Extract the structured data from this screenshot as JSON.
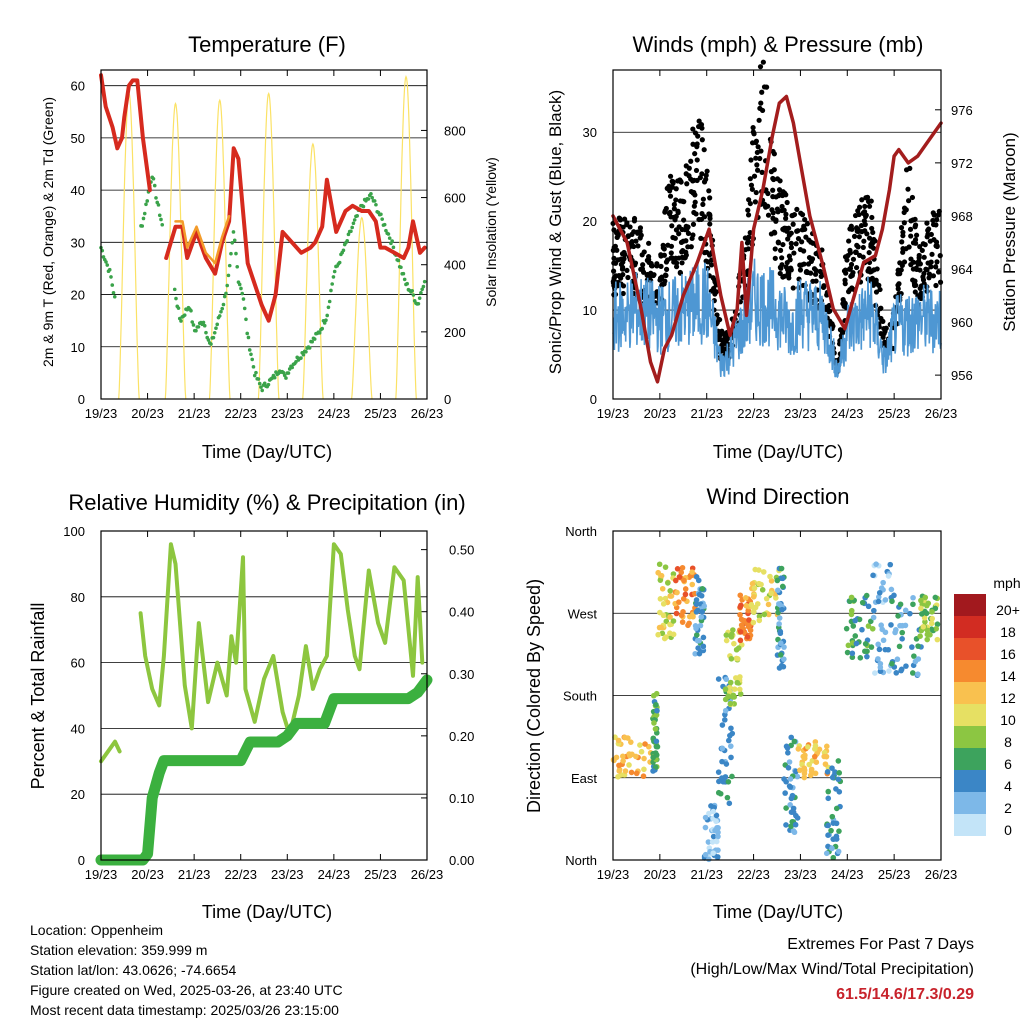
{
  "chart_data": [
    {
      "type": "line",
      "title": "Temperature (F)",
      "xlabel": "Time (Day/UTC)",
      "ylabel": "2m & 9m T (Red, Orange) & 2m Td (Green)",
      "y2label": "Solar Insolation (Yellow)",
      "x_ticks": [
        "19/23",
        "20/23",
        "21/23",
        "22/23",
        "23/23",
        "24/23",
        "25/23",
        "26/23"
      ],
      "ylim": [
        0,
        63
      ],
      "y_ticks": [
        0,
        10,
        20,
        30,
        40,
        50,
        60
      ],
      "y2lim": [
        0,
        980
      ],
      "y2_ticks": [
        0,
        200,
        400,
        600,
        800
      ],
      "series": [
        {
          "name": "2m T",
          "color": "#d62a1e",
          "x": [
            0,
            0.1,
            0.25,
            0.35,
            0.45,
            0.5,
            0.6,
            0.68,
            0.78,
            0.9,
            1.05,
            1.4,
            1.6,
            1.75,
            1.85,
            2.05,
            2.25,
            2.45,
            2.6,
            2.75,
            2.85,
            2.95,
            3.05,
            3.15,
            3.3,
            3.45,
            3.6,
            3.75,
            3.9,
            4.1,
            4.3,
            4.5,
            4.6,
            4.75,
            4.85,
            5.05,
            5.25,
            5.4,
            5.6,
            5.75,
            5.9,
            6.0,
            6.1,
            6.3,
            6.5,
            6.6,
            6.7,
            6.85,
            6.95
          ],
          "y": [
            62,
            56,
            52,
            48,
            50,
            54,
            60,
            61,
            61,
            50,
            40,
            27,
            33,
            33,
            27,
            32,
            27,
            24,
            30,
            34,
            48,
            46,
            36,
            26,
            22,
            18,
            15,
            20,
            32,
            30,
            28,
            29,
            30,
            33,
            42,
            32,
            36,
            37,
            36,
            36,
            34,
            29,
            29,
            28,
            27,
            29,
            34,
            28,
            29
          ]
        },
        {
          "name": "9m T",
          "color": "#f39b2a",
          "x": [
            1.6,
            1.75,
            1.85,
            2.05,
            2.25,
            2.45,
            2.6,
            2.75,
            5.05,
            5.25,
            6.85
          ],
          "y": [
            34,
            34,
            29,
            33,
            28,
            26,
            31,
            35,
            31,
            36,
            30
          ]
        },
        {
          "name": "2m Td",
          "color": "#3aa34a",
          "x": [
            0,
            0.2,
            0.3,
            0.9,
            1.05,
            1.1,
            1.2,
            1.3,
            1.6,
            1.7,
            1.9,
            2.0,
            2.2,
            2.35,
            2.45,
            2.55,
            2.65,
            2.75,
            2.85,
            2.95,
            3.05,
            3.15,
            3.3,
            3.45,
            3.7,
            3.85,
            3.95,
            4.05,
            4.25,
            4.45,
            4.7,
            4.85,
            5.0,
            5.1,
            5.4,
            5.6,
            5.8,
            6.0,
            6.2,
            6.4,
            6.55,
            6.7,
            6.8,
            6.95
          ],
          "y": [
            29,
            24,
            19,
            34,
            41,
            43,
            38,
            34,
            20,
            15,
            18,
            13,
            15,
            10,
            13,
            16,
            19,
            24,
            32,
            23,
            20,
            12,
            5,
            2,
            4,
            6,
            4,
            6,
            8,
            10,
            13,
            16,
            24,
            26,
            33,
            37,
            39,
            35,
            31,
            26,
            22,
            20,
            18,
            23
          ]
        }
      ],
      "insolation": {
        "name": "Solar Insolation",
        "color": "#fbe266",
        "peaks": [
          {
            "x": 0.6,
            "y": 910
          },
          {
            "x": 1.6,
            "y": 880
          },
          {
            "x": 2.55,
            "y": 890
          },
          {
            "x": 3.6,
            "y": 910
          },
          {
            "x": 4.55,
            "y": 760
          },
          {
            "x": 5.6,
            "y": 540
          },
          {
            "x": 6.55,
            "y": 960
          }
        ]
      }
    },
    {
      "type": "scatter",
      "title": "Winds (mph) & Pressure (mb)",
      "xlabel": "Time (Day/UTC)",
      "ylabel": "Sonic/Prop Wind & Gust (Blue, Black)",
      "y2label": "Station Pressure (Maroon)",
      "x_ticks": [
        "19/23",
        "20/23",
        "21/23",
        "22/23",
        "23/23",
        "24/23",
        "25/23",
        "26/23"
      ],
      "ylim": [
        0,
        37
      ],
      "y_ticks": [
        0,
        10,
        20,
        30
      ],
      "y2lim": [
        954.2,
        979
      ],
      "y2_ticks": [
        956,
        960,
        964,
        968,
        972,
        976
      ],
      "series": [
        {
          "name": "Wind",
          "color": "#4e97d3",
          "x": [
            0,
            0.5,
            1.0,
            1.5,
            2.0,
            2.3,
            2.5,
            3.0,
            3.5,
            3.8,
            4.0,
            4.5,
            4.8,
            5.0,
            5.3,
            5.5,
            5.8,
            6.0,
            6.5,
            7.0
          ],
          "y": [
            9,
            10,
            9,
            10,
            11,
            4,
            5,
            11,
            10,
            8,
            10,
            9,
            3,
            8,
            9,
            10,
            4,
            8,
            9,
            9
          ]
        },
        {
          "name": "Gust",
          "color": "#000000",
          "x": [
            0,
            0.5,
            1.0,
            1.2,
            1.5,
            1.8,
            2.0,
            2.3,
            2.5,
            2.8,
            3.0,
            3.2,
            3.5,
            3.8,
            4.0,
            4.2,
            4.5,
            4.8,
            5.0,
            5.3,
            5.5,
            5.8,
            6.0,
            6.3,
            6.5,
            7.0
          ],
          "y": [
            16,
            16,
            12,
            21,
            19,
            27,
            21,
            6,
            6,
            14,
            25,
            31,
            20,
            17,
            17,
            15,
            13,
            3,
            15,
            18,
            18,
            6,
            8,
            22,
            14,
            18
          ]
        },
        {
          "name": "Pressure",
          "color": "#a31d1d",
          "x": [
            0,
            0.3,
            0.6,
            0.8,
            0.95,
            1.1,
            1.25,
            1.5,
            1.8,
            2.05,
            2.3,
            2.5,
            2.65,
            2.75,
            2.85,
            3.0,
            3.2,
            3.4,
            3.55,
            3.7,
            3.85,
            4.0,
            4.2,
            4.5,
            4.7,
            4.95,
            5.15,
            5.35,
            5.6,
            5.75,
            5.9,
            6.0,
            6.1,
            6.3,
            6.5,
            6.7,
            7.0
          ],
          "y": [
            968,
            966,
            961,
            957,
            955.5,
            958,
            959,
            962,
            964.5,
            967,
            962,
            959,
            961,
            966,
            960.5,
            967,
            970,
            974,
            976.5,
            977,
            975,
            972,
            968,
            964,
            961,
            959.5,
            962,
            964.5,
            965,
            967,
            970,
            972.5,
            973,
            972,
            972.5,
            973.5,
            975
          ]
        }
      ]
    },
    {
      "type": "line",
      "title": "Relative Humidity (%) & Precipitation (in)",
      "xlabel": "Time (Day/UTC)",
      "ylabel": "Percent & Total Rainfall",
      "x_ticks": [
        "19/23",
        "20/23",
        "21/23",
        "22/23",
        "23/23",
        "24/23",
        "25/23",
        "26/23"
      ],
      "ylim": [
        0,
        100
      ],
      "y_ticks": [
        0,
        20,
        40,
        60,
        80,
        100
      ],
      "y2lim": [
        0,
        0.53
      ],
      "y2_ticks": [
        "0.00",
        "0.10",
        "0.20",
        "0.30",
        "0.40",
        "0.50"
      ],
      "series": [
        {
          "name": "Relative Humidity",
          "color": "#8dc63f",
          "x": [
            0,
            0.3,
            0.4,
            0.85,
            0.95,
            1.1,
            1.25,
            1.35,
            1.5,
            1.6,
            1.8,
            1.95,
            2.1,
            2.3,
            2.5,
            2.7,
            2.8,
            2.9,
            3.05,
            3.1,
            3.3,
            3.5,
            3.7,
            3.9,
            4.05,
            4.25,
            4.4,
            4.55,
            4.7,
            4.85,
            5.0,
            5.15,
            5.3,
            5.45,
            5.55,
            5.75,
            5.95,
            6.1,
            6.3,
            6.5,
            6.7,
            6.8,
            6.9
          ],
          "y": [
            30,
            36,
            33,
            75,
            62,
            52,
            47,
            62,
            96,
            90,
            53,
            40,
            72,
            48,
            60,
            50,
            68,
            60,
            92,
            52,
            42,
            55,
            62,
            45,
            38,
            50,
            65,
            52,
            58,
            62,
            96,
            93,
            76,
            62,
            58,
            88,
            72,
            66,
            89,
            85,
            56,
            86,
            60
          ]
        },
        {
          "name": "Total Rainfall",
          "color": "#3bb03f",
          "x": [
            0,
            0.9,
            1.0,
            1.1,
            1.25,
            1.35,
            1.5,
            2.0,
            2.2,
            3.0,
            3.2,
            3.4,
            3.6,
            3.8,
            4.0,
            4.2,
            4.4,
            4.6,
            4.8,
            5.0,
            5.2,
            5.4,
            5.6,
            5.8,
            6.0,
            6.2,
            6.4,
            6.6,
            6.8,
            6.9,
            7.0
          ],
          "y": [
            0,
            0,
            0.01,
            0.1,
            0.14,
            0.16,
            0.16,
            0.16,
            0.16,
            0.16,
            0.19,
            0.19,
            0.19,
            0.19,
            0.2,
            0.22,
            0.22,
            0.22,
            0.22,
            0.26,
            0.26,
            0.26,
            0.26,
            0.26,
            0.26,
            0.26,
            0.26,
            0.26,
            0.27,
            0.28,
            0.29
          ]
        }
      ]
    },
    {
      "type": "scatter",
      "title": "Wind Direction",
      "xlabel": "Time (Day/UTC)",
      "ylabel": "Direction (Colored By Speed)",
      "x_ticks": [
        "19/23",
        "20/23",
        "21/23",
        "22/23",
        "23/23",
        "24/23",
        "25/23",
        "26/23"
      ],
      "ylim": [
        0,
        360
      ],
      "y_ticks": [
        "North",
        "East",
        "South",
        "West",
        "North"
      ],
      "colorbar": {
        "title": "mph",
        "labels": [
          "20+",
          "18",
          "16",
          "14",
          "12",
          "10",
          "8",
          "6",
          "4",
          "2",
          "0"
        ],
        "colors": [
          "#a2191e",
          "#d22c22",
          "#e8512a",
          "#f68a2f",
          "#f9c14f",
          "#e6e063",
          "#8cc642",
          "#3da35d",
          "#3b86c6",
          "#7db8e8",
          "#c3e4f8"
        ]
      },
      "clusters": [
        {
          "x": [
            0,
            0.85
          ],
          "y": [
            90,
            135
          ],
          "speed": 12
        },
        {
          "x": [
            0.85,
            0.95
          ],
          "y": [
            95,
            185
          ],
          "speed": 6
        },
        {
          "x": [
            0.95,
            1.3
          ],
          "y": [
            240,
            325
          ],
          "speed": 10
        },
        {
          "x": [
            1.3,
            1.75
          ],
          "y": [
            255,
            320
          ],
          "speed": 14
        },
        {
          "x": [
            1.75,
            1.95
          ],
          "y": [
            225,
            310
          ],
          "speed": 4
        },
        {
          "x": [
            1.95,
            2.25
          ],
          "y": [
            0,
            60
          ],
          "speed": 2
        },
        {
          "x": [
            2.25,
            2.55
          ],
          "y": [
            60,
            200
          ],
          "speed": 4
        },
        {
          "x": [
            2.4,
            2.75
          ],
          "y": [
            170,
            260
          ],
          "speed": 9
        },
        {
          "x": [
            2.7,
            2.95
          ],
          "y": [
            240,
            290
          ],
          "speed": 14
        },
        {
          "x": [
            2.95,
            3.55
          ],
          "y": [
            255,
            325
          ],
          "speed": 10
        },
        {
          "x": [
            3.5,
            3.65
          ],
          "y": [
            210,
            325
          ],
          "speed": 4
        },
        {
          "x": [
            3.65,
            3.95
          ],
          "y": [
            30,
            140
          ],
          "speed": 4
        },
        {
          "x": [
            3.95,
            4.6
          ],
          "y": [
            90,
            130
          ],
          "speed": 12
        },
        {
          "x": [
            4.55,
            4.85
          ],
          "y": [
            0,
            110
          ],
          "speed": 4
        },
        {
          "x": [
            4.95,
            5.55
          ],
          "y": [
            220,
            290
          ],
          "speed": 6
        },
        {
          "x": [
            5.55,
            5.95
          ],
          "y": [
            200,
            340
          ],
          "speed": 2
        },
        {
          "x": [
            5.95,
            6.6
          ],
          "y": [
            200,
            290
          ],
          "speed": 4
        },
        {
          "x": [
            6.55,
            6.95
          ],
          "y": [
            240,
            290
          ],
          "speed": 8
        }
      ]
    }
  ],
  "station": {
    "location": "Location: Oppenheim",
    "elevation": "Station elevation: 359.999 m",
    "latlon": "Station lat/lon: 43.0626; -74.6654",
    "created": "Figure created on Wed, 2025-03-26, at 23:40 UTC",
    "recent": "Most recent data timestamp: 2025/03/26 23:15:00"
  },
  "extremes": {
    "title": "Extremes For Past 7 Days",
    "subtitle": "(High/Low/Max Wind/Total Precipitation)",
    "values": "61.5/14.6/17.3/0.29"
  },
  "colors": {
    "grid": "#000000",
    "rh": "#8dc63f",
    "precip": "#3bb03f",
    "temp": "#d62a1e",
    "pressure": "#a31d1d",
    "extreme_values": "#c8232c"
  }
}
